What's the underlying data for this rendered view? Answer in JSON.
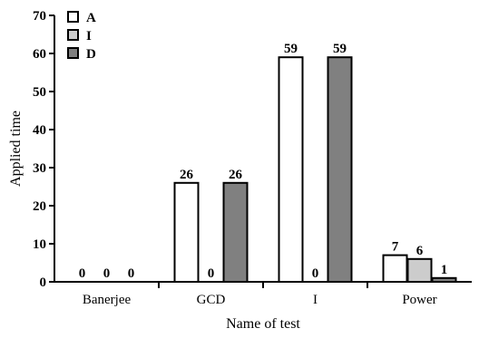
{
  "chart_data": {
    "type": "bar",
    "title": "",
    "xlabel": "Name of test",
    "ylabel": "Applied time",
    "categories": [
      "Banerjee",
      "GCD",
      "I",
      "Power"
    ],
    "series": [
      {
        "name": "A",
        "values": [
          0,
          26,
          59,
          7
        ],
        "color": "#ffffff"
      },
      {
        "name": "I",
        "values": [
          0,
          0,
          0,
          6
        ],
        "color": "#cccccc"
      },
      {
        "name": "D",
        "values": [
          0,
          26,
          59,
          1
        ],
        "color": "#808080"
      }
    ],
    "ylim": [
      0,
      70
    ],
    "yticks": [
      0,
      10,
      20,
      30,
      40,
      50,
      60,
      70
    ],
    "grid": false,
    "legend_position": "top-left"
  }
}
